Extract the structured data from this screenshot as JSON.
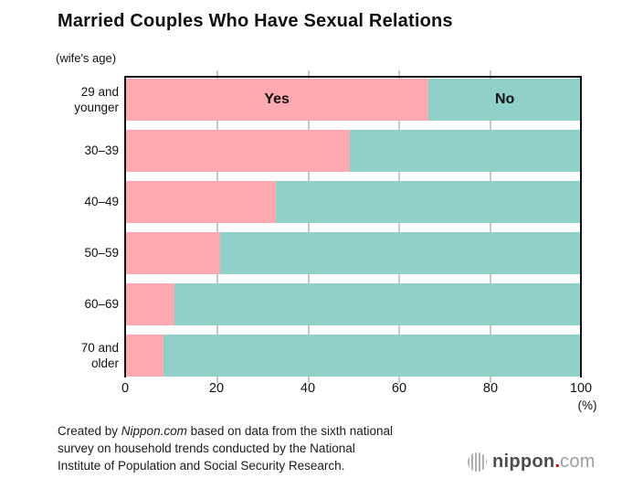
{
  "title": "Married Couples Who Have Sexual Relations",
  "axis_note": "(wife's age)",
  "chart_data": {
    "type": "bar",
    "orientation": "horizontal",
    "stacked": true,
    "title": "Married Couples Who Have Sexual Relations",
    "ylabel": "(wife's age)",
    "xlabel": "(%)",
    "xlim": [
      0,
      100
    ],
    "xticks": [
      "0",
      "20",
      "40",
      "60",
      "80",
      "100"
    ],
    "grid": "vertical gridlines at 20, 40, 60, 80 (light gray)",
    "legend_position": "labels inside first bar segments",
    "categories": [
      "29 and\nyounger",
      "30–39",
      "40–49",
      "50–59",
      "60–69",
      "70 and\nolder"
    ],
    "series": [
      {
        "name": "Yes",
        "color": "#FFA9B0",
        "values": [
          66.6,
          49.2,
          33.0,
          20.8,
          10.8,
          8.5
        ]
      },
      {
        "name": "No",
        "color": "#8FD1C8",
        "values": [
          33.4,
          50.8,
          67.0,
          79.2,
          89.2,
          91.5
        ]
      }
    ]
  },
  "footer": {
    "line1_prefix": "Created by ",
    "line1_italic": "Nippon.com",
    "line1_suffix": " based on data from the sixth national",
    "line2": "survey on household trends conducted by the National",
    "line3": "Institute of Population and Social Security Research."
  },
  "logo": {
    "name": "nippon",
    "dot": ".",
    "tld": "com"
  },
  "colors": {
    "yes_pink": "#FFA9B0",
    "no_teal": "#8FD1C8",
    "axis_black": "#111111",
    "gridline_gray": "#c8c8c8",
    "logo_text_dark": "#4d4d4d",
    "logo_dot_red": "#d7000f",
    "logo_text_light": "#9e9e9e"
  }
}
